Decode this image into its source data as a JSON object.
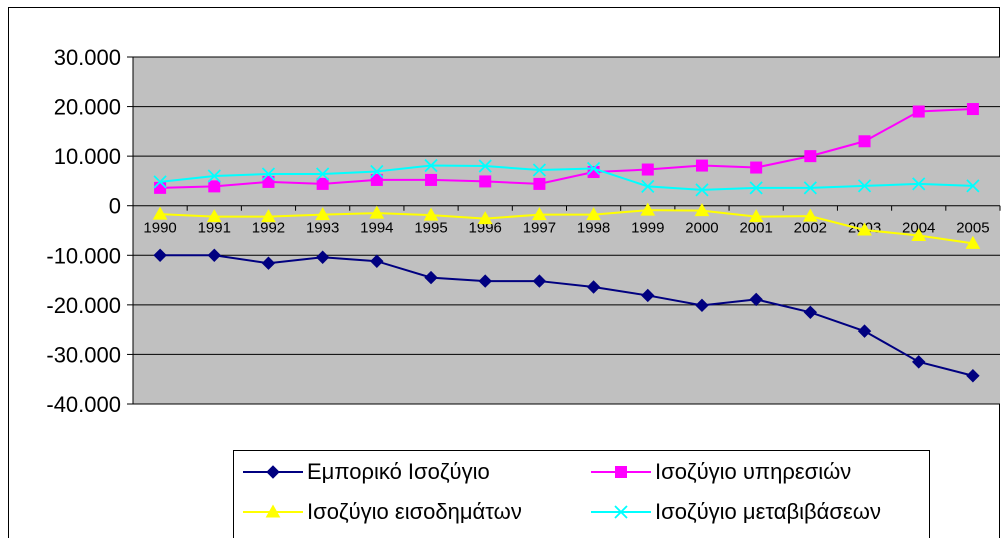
{
  "chart_data": {
    "type": "line",
    "title": "",
    "xlabel": "",
    "ylabel": "",
    "categories": [
      "1990",
      "1991",
      "1992",
      "1993",
      "1994",
      "1995",
      "1996",
      "1997",
      "1998",
      "1999",
      "2000",
      "2001",
      "2002",
      "2003",
      "2004",
      "2005"
    ],
    "ylim": [
      -40000,
      30000
    ],
    "yticks": [
      30000,
      20000,
      10000,
      0,
      -10000,
      -20000,
      -30000,
      -40000
    ],
    "ytick_labels": [
      "30.000",
      "20.000",
      "10.000",
      "0",
      "-10.000",
      "-20.000",
      "-30.000",
      "-40.000"
    ],
    "grid": "horizontal",
    "plot_background": "#c0c0c0",
    "legend_position": "bottom",
    "series": [
      {
        "name": "Εμπορικό Ισοζύγιο",
        "color": "#000080",
        "marker": "diamond",
        "values": [
          -10000,
          -10000,
          -11600,
          -10400,
          -11200,
          -14500,
          -15200,
          -15200,
          -16400,
          -18100,
          -20100,
          -18900,
          -21500,
          -25300,
          -31500,
          -34300
        ]
      },
      {
        "name": "Ισοζύγιο υπηρεσιών",
        "color": "#ff00ff",
        "marker": "square",
        "values": [
          3600,
          3900,
          4800,
          4400,
          5200,
          5200,
          4900,
          4400,
          6800,
          7300,
          8100,
          7700,
          10000,
          13000,
          19000,
          19500
        ]
      },
      {
        "name": "Ισοζύγιο εισοδημάτων",
        "color": "#ffff00",
        "marker": "triangle",
        "values": [
          -1700,
          -2200,
          -2200,
          -1800,
          -1500,
          -1900,
          -2600,
          -1800,
          -1800,
          -900,
          -1000,
          -2200,
          -2100,
          -4900,
          -6000,
          -7600
        ]
      },
      {
        "name": "Ισοζύγιο μεταβιβάσεων",
        "color": "#00ffff",
        "marker": "x",
        "values": [
          4800,
          6000,
          6400,
          6400,
          6900,
          8100,
          8000,
          7200,
          7500,
          3900,
          3200,
          3600,
          3600,
          4000,
          4400,
          4000
        ]
      }
    ]
  }
}
